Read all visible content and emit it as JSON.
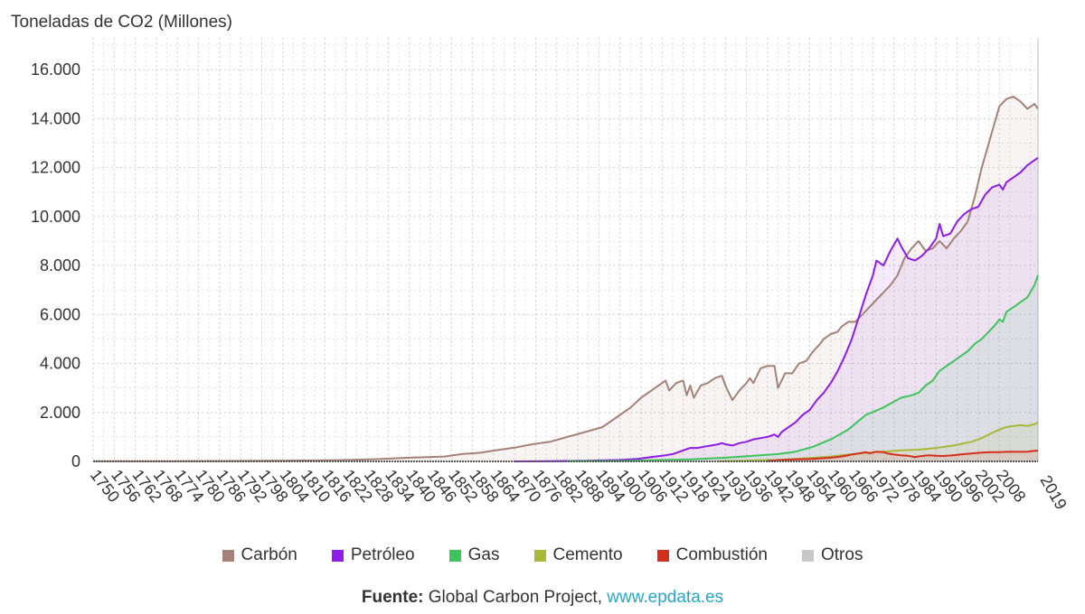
{
  "chart_data": {
    "type": "line",
    "title": "",
    "ylabel": "Toneladas de CO2 (Millones)",
    "xlabel": "",
    "ylim": [
      0,
      17000
    ],
    "xlim": [
      1750,
      2019
    ],
    "y_ticks": [
      0,
      2000,
      4000,
      6000,
      8000,
      10000,
      12000,
      14000,
      16000
    ],
    "y_tick_labels": [
      "0",
      "2.000",
      "4.000",
      "6.000",
      "8.000",
      "10.000",
      "12.000",
      "14.000",
      "16.000"
    ],
    "x_tick_labels": [
      "1750",
      "1756",
      "1762",
      "1768",
      "1774",
      "1780",
      "1786",
      "1792",
      "1798",
      "1804",
      "1810",
      "1816",
      "1822",
      "1828",
      "1834",
      "1840",
      "1846",
      "1852",
      "1858",
      "1864",
      "1870",
      "1876",
      "1882",
      "1888",
      "1894",
      "1900",
      "1906",
      "1912",
      "1918",
      "1924",
      "1930",
      "1936",
      "1942",
      "1948",
      "1954",
      "1960",
      "1966",
      "1972",
      "1978",
      "1984",
      "1990",
      "1996",
      "2002",
      "2008",
      "2019"
    ],
    "grid": true,
    "legend_position": "bottom",
    "series": [
      {
        "name": "Carbón",
        "color": "#a48277",
        "points": [
          [
            1750,
            9
          ],
          [
            1770,
            12
          ],
          [
            1790,
            18
          ],
          [
            1800,
            28
          ],
          [
            1810,
            36
          ],
          [
            1820,
            50
          ],
          [
            1830,
            90
          ],
          [
            1840,
            150
          ],
          [
            1850,
            200
          ],
          [
            1855,
            300
          ],
          [
            1860,
            350
          ],
          [
            1865,
            460
          ],
          [
            1870,
            560
          ],
          [
            1875,
            700
          ],
          [
            1880,
            800
          ],
          [
            1885,
            1000
          ],
          [
            1890,
            1200
          ],
          [
            1895,
            1400
          ],
          [
            1900,
            1900
          ],
          [
            1903,
            2200
          ],
          [
            1906,
            2600
          ],
          [
            1910,
            3000
          ],
          [
            1913,
            3300
          ],
          [
            1914,
            2900
          ],
          [
            1916,
            3200
          ],
          [
            1918,
            3300
          ],
          [
            1919,
            2700
          ],
          [
            1920,
            3100
          ],
          [
            1921,
            2600
          ],
          [
            1923,
            3100
          ],
          [
            1925,
            3200
          ],
          [
            1927,
            3400
          ],
          [
            1929,
            3500
          ],
          [
            1930,
            3100
          ],
          [
            1932,
            2500
          ],
          [
            1934,
            2900
          ],
          [
            1936,
            3200
          ],
          [
            1937,
            3400
          ],
          [
            1938,
            3200
          ],
          [
            1940,
            3800
          ],
          [
            1942,
            3900
          ],
          [
            1944,
            3900
          ],
          [
            1945,
            3000
          ],
          [
            1947,
            3600
          ],
          [
            1949,
            3600
          ],
          [
            1951,
            4000
          ],
          [
            1953,
            4100
          ],
          [
            1955,
            4500
          ],
          [
            1957,
            4800
          ],
          [
            1958,
            5000
          ],
          [
            1959,
            5100
          ],
          [
            1960,
            5200
          ],
          [
            1962,
            5300
          ],
          [
            1963,
            5500
          ],
          [
            1965,
            5700
          ],
          [
            1967,
            5700
          ],
          [
            1969,
            6000
          ],
          [
            1971,
            6300
          ],
          [
            1973,
            6600
          ],
          [
            1975,
            6900
          ],
          [
            1977,
            7200
          ],
          [
            1979,
            7600
          ],
          [
            1981,
            8300
          ],
          [
            1983,
            8700
          ],
          [
            1985,
            9000
          ],
          [
            1987,
            8600
          ],
          [
            1989,
            8700
          ],
          [
            1991,
            9000
          ],
          [
            1993,
            8700
          ],
          [
            1995,
            9100
          ],
          [
            1997,
            9400
          ],
          [
            1999,
            9800
          ],
          [
            2001,
            10800
          ],
          [
            2003,
            12000
          ],
          [
            2005,
            13000
          ],
          [
            2007,
            14000
          ],
          [
            2008,
            14500
          ],
          [
            2010,
            14800
          ],
          [
            2012,
            14900
          ],
          [
            2014,
            14700
          ],
          [
            2016,
            14400
          ],
          [
            2018,
            14600
          ],
          [
            2019,
            14400
          ]
        ]
      },
      {
        "name": "Petróleo",
        "color": "#8f1ce8",
        "points": [
          [
            1870,
            1
          ],
          [
            1880,
            10
          ],
          [
            1890,
            30
          ],
          [
            1900,
            60
          ],
          [
            1905,
            100
          ],
          [
            1910,
            200
          ],
          [
            1913,
            250
          ],
          [
            1915,
            300
          ],
          [
            1918,
            450
          ],
          [
            1920,
            550
          ],
          [
            1922,
            550
          ],
          [
            1924,
            600
          ],
          [
            1926,
            650
          ],
          [
            1928,
            700
          ],
          [
            1929,
            750
          ],
          [
            1930,
            700
          ],
          [
            1932,
            650
          ],
          [
            1934,
            750
          ],
          [
            1936,
            800
          ],
          [
            1938,
            900
          ],
          [
            1940,
            950
          ],
          [
            1942,
            1000
          ],
          [
            1944,
            1100
          ],
          [
            1945,
            1000
          ],
          [
            1946,
            1200
          ],
          [
            1948,
            1400
          ],
          [
            1950,
            1600
          ],
          [
            1952,
            1900
          ],
          [
            1954,
            2100
          ],
          [
            1956,
            2500
          ],
          [
            1958,
            2800
          ],
          [
            1960,
            3200
          ],
          [
            1962,
            3700
          ],
          [
            1964,
            4300
          ],
          [
            1966,
            5000
          ],
          [
            1968,
            5900
          ],
          [
            1970,
            6800
          ],
          [
            1972,
            7600
          ],
          [
            1973,
            8200
          ],
          [
            1975,
            8000
          ],
          [
            1977,
            8600
          ],
          [
            1979,
            9100
          ],
          [
            1980,
            8800
          ],
          [
            1982,
            8300
          ],
          [
            1984,
            8200
          ],
          [
            1986,
            8400
          ],
          [
            1988,
            8700
          ],
          [
            1990,
            9100
          ],
          [
            1991,
            9700
          ],
          [
            1992,
            9200
          ],
          [
            1994,
            9300
          ],
          [
            1996,
            9800
          ],
          [
            1998,
            10100
          ],
          [
            2000,
            10300
          ],
          [
            2002,
            10400
          ],
          [
            2004,
            10900
          ],
          [
            2006,
            11200
          ],
          [
            2008,
            11300
          ],
          [
            2009,
            11100
          ],
          [
            2010,
            11400
          ],
          [
            2012,
            11600
          ],
          [
            2014,
            11800
          ],
          [
            2016,
            12100
          ],
          [
            2018,
            12300
          ],
          [
            2019,
            12400
          ]
        ]
      },
      {
        "name": "Gas",
        "color": "#3fc35d",
        "points": [
          [
            1885,
            10
          ],
          [
            1900,
            20
          ],
          [
            1910,
            50
          ],
          [
            1920,
            80
          ],
          [
            1930,
            150
          ],
          [
            1940,
            250
          ],
          [
            1945,
            300
          ],
          [
            1950,
            400
          ],
          [
            1955,
            600
          ],
          [
            1960,
            900
          ],
          [
            1965,
            1300
          ],
          [
            1970,
            1900
          ],
          [
            1975,
            2200
          ],
          [
            1980,
            2600
          ],
          [
            1983,
            2700
          ],
          [
            1985,
            2800
          ],
          [
            1987,
            3100
          ],
          [
            1989,
            3300
          ],
          [
            1991,
            3700
          ],
          [
            1993,
            3900
          ],
          [
            1995,
            4100
          ],
          [
            1997,
            4300
          ],
          [
            1999,
            4500
          ],
          [
            2001,
            4800
          ],
          [
            2003,
            5000
          ],
          [
            2005,
            5300
          ],
          [
            2007,
            5600
          ],
          [
            2008,
            5800
          ],
          [
            2009,
            5700
          ],
          [
            2010,
            6100
          ],
          [
            2012,
            6300
          ],
          [
            2014,
            6500
          ],
          [
            2016,
            6700
          ],
          [
            2018,
            7200
          ],
          [
            2019,
            7600
          ]
        ]
      },
      {
        "name": "Cemento",
        "color": "#a8b83a",
        "points": [
          [
            1928,
            10
          ],
          [
            1935,
            30
          ],
          [
            1940,
            50
          ],
          [
            1945,
            60
          ],
          [
            1950,
            100
          ],
          [
            1955,
            150
          ],
          [
            1960,
            200
          ],
          [
            1965,
            280
          ],
          [
            1970,
            350
          ],
          [
            1975,
            400
          ],
          [
            1980,
            450
          ],
          [
            1985,
            480
          ],
          [
            1990,
            550
          ],
          [
            1995,
            650
          ],
          [
            2000,
            800
          ],
          [
            2003,
            950
          ],
          [
            2005,
            1100
          ],
          [
            2008,
            1300
          ],
          [
            2010,
            1400
          ],
          [
            2012,
            1450
          ],
          [
            2014,
            1480
          ],
          [
            2016,
            1450
          ],
          [
            2018,
            1520
          ],
          [
            2019,
            1600
          ]
        ]
      },
      {
        "name": "Combustión",
        "color": "#d42f1c",
        "points": [
          [
            1942,
            20
          ],
          [
            1946,
            60
          ],
          [
            1950,
            80
          ],
          [
            1955,
            100
          ],
          [
            1960,
            150
          ],
          [
            1962,
            180
          ],
          [
            1964,
            220
          ],
          [
            1966,
            280
          ],
          [
            1968,
            330
          ],
          [
            1970,
            380
          ],
          [
            1971,
            330
          ],
          [
            1973,
            400
          ],
          [
            1975,
            380
          ],
          [
            1976,
            330
          ],
          [
            1978,
            280
          ],
          [
            1980,
            250
          ],
          [
            1982,
            230
          ],
          [
            1984,
            180
          ],
          [
            1986,
            220
          ],
          [
            1988,
            250
          ],
          [
            1990,
            230
          ],
          [
            1992,
            220
          ],
          [
            1994,
            240
          ],
          [
            1996,
            270
          ],
          [
            1998,
            300
          ],
          [
            2000,
            320
          ],
          [
            2002,
            350
          ],
          [
            2004,
            370
          ],
          [
            2006,
            380
          ],
          [
            2008,
            380
          ],
          [
            2010,
            390
          ],
          [
            2012,
            400
          ],
          [
            2014,
            390
          ],
          [
            2016,
            400
          ],
          [
            2018,
            430
          ],
          [
            2019,
            440
          ]
        ]
      },
      {
        "name": "Otros",
        "color": "#c8c8c8",
        "points": [
          [
            1750,
            0
          ],
          [
            2019,
            0
          ]
        ]
      }
    ]
  },
  "source": {
    "label": "Fuente:",
    "text": "Global Carbon Project,",
    "link": "www.epdata.es"
  }
}
